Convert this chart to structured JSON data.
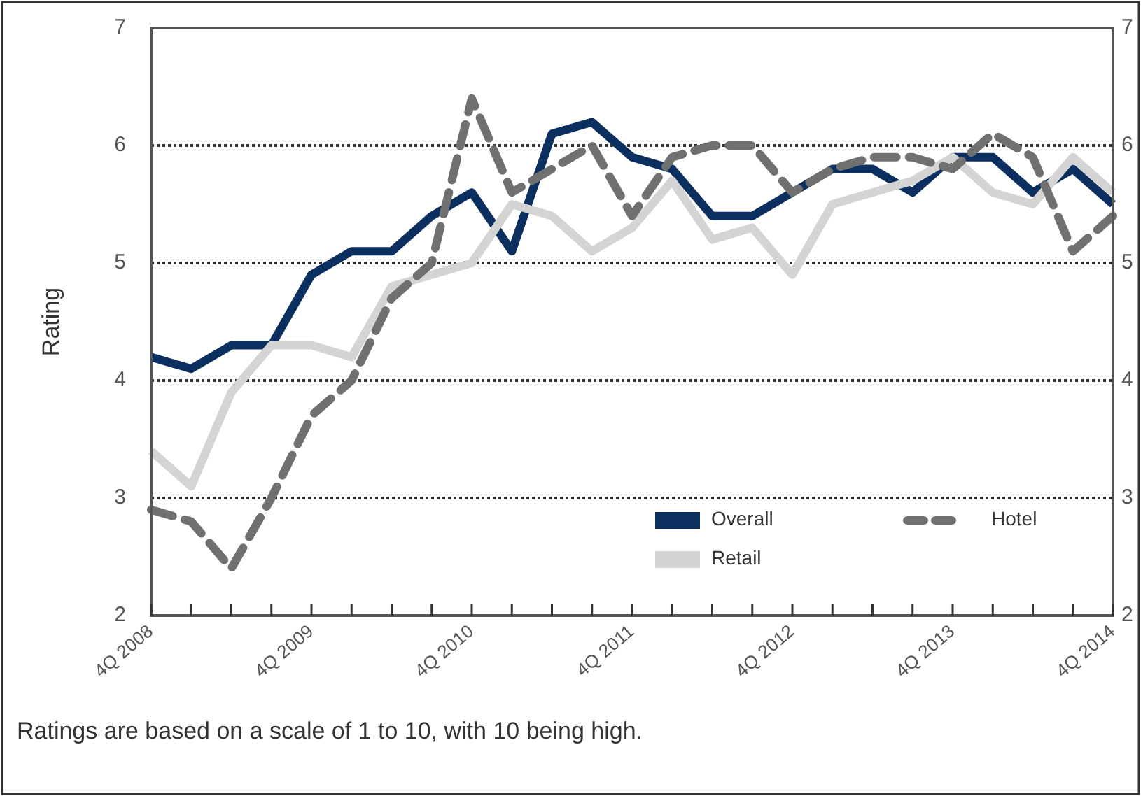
{
  "chart_data": {
    "type": "line",
    "ylabel": "Rating",
    "categories": [
      "4Q 2008",
      null,
      null,
      null,
      "4Q 2009",
      null,
      null,
      null,
      "4Q 2010",
      null,
      null,
      null,
      "4Q 2011",
      null,
      null,
      null,
      "4Q 2012",
      null,
      null,
      null,
      "4Q 2013",
      null,
      null,
      null,
      "4Q 2014"
    ],
    "series": [
      {
        "name": "Overall",
        "color": "#0b2f5f",
        "line_style": "solid",
        "values": [
          4.2,
          4.1,
          4.3,
          4.3,
          4.9,
          5.1,
          5.1,
          5.4,
          5.6,
          5.1,
          6.1,
          6.2,
          5.9,
          5.8,
          5.4,
          5.4,
          5.6,
          5.8,
          5.8,
          5.6,
          5.9,
          5.9,
          5.6,
          5.8,
          5.5
        ]
      },
      {
        "name": "Retail",
        "color": "#d4d4d4",
        "line_style": "solid",
        "values": [
          3.4,
          3.1,
          3.9,
          4.3,
          4.3,
          4.2,
          4.8,
          4.9,
          5.0,
          5.5,
          5.4,
          5.1,
          5.3,
          5.7,
          5.2,
          5.3,
          4.9,
          5.5,
          5.6,
          5.7,
          5.9,
          5.6,
          5.5,
          5.9,
          5.6
        ]
      },
      {
        "name": "Hotel",
        "color": "#707070",
        "line_style": "dashed",
        "values": [
          2.9,
          2.8,
          2.4,
          3.0,
          3.7,
          4.0,
          4.7,
          5.0,
          6.4,
          5.6,
          5.8,
          6.0,
          5.4,
          5.9,
          6.0,
          6.0,
          5.6,
          5.8,
          5.9,
          5.9,
          5.8,
          6.1,
          5.9,
          5.1,
          5.4
        ]
      }
    ],
    "ylim": [
      2,
      7
    ],
    "yticks": [
      2,
      3,
      4,
      5,
      6,
      7
    ],
    "y2lim": [
      2,
      7
    ],
    "y2ticks": [
      2,
      3,
      4,
      5,
      6,
      7
    ],
    "grid": "y",
    "legend": "bottom right",
    "annotations": [
      "Ratings are based on a scale of 1 to 10, with 10 being high."
    ]
  }
}
